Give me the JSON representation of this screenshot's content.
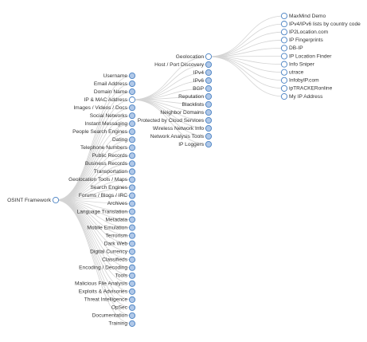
{
  "tree": {
    "label": "OSINT Framework",
    "children": [
      {
        "label": "Username"
      },
      {
        "label": "Email Address"
      },
      {
        "label": "Domain Name"
      },
      {
        "label": "IP & MAC Address",
        "children": [
          {
            "label": "Geolocation",
            "children": [
              {
                "label": "MaxMind Demo"
              },
              {
                "label": "IPv4/IPv6 lists by country code"
              },
              {
                "label": "IP2Location.com"
              },
              {
                "label": "IP Fingerprints"
              },
              {
                "label": "DB-IP"
              },
              {
                "label": "IP Location Finder"
              },
              {
                "label": "Info Sniper"
              },
              {
                "label": "utrace"
              },
              {
                "label": "InfobyIP.com"
              },
              {
                "label": "ipTRACKERonline"
              },
              {
                "label": "My IP Address"
              }
            ]
          },
          {
            "label": "Host / Port Discovery"
          },
          {
            "label": "IPv4"
          },
          {
            "label": "IPv6"
          },
          {
            "label": "BGP"
          },
          {
            "label": "Reputation"
          },
          {
            "label": "Blacklists"
          },
          {
            "label": "Neighbor Domains"
          },
          {
            "label": "Protected by Cloud Services"
          },
          {
            "label": "Wireless Network Info"
          },
          {
            "label": "Network Analysis Tools"
          },
          {
            "label": "IP Loggers"
          }
        ]
      },
      {
        "label": "Images / Videos / Docs"
      },
      {
        "label": "Social Networks"
      },
      {
        "label": "Instant Messaging"
      },
      {
        "label": "People Search Engines"
      },
      {
        "label": "Dating"
      },
      {
        "label": "Telephone Numbers"
      },
      {
        "label": "Public Records"
      },
      {
        "label": "Business Records"
      },
      {
        "label": "Transportation"
      },
      {
        "label": "Geolocation Tools / Maps"
      },
      {
        "label": "Search Engines"
      },
      {
        "label": "Forums / Blogs / IRC"
      },
      {
        "label": "Archives"
      },
      {
        "label": "Language Translation"
      },
      {
        "label": "Metadata"
      },
      {
        "label": "Mobile Emulation"
      },
      {
        "label": "Terrorism"
      },
      {
        "label": "Dark Web"
      },
      {
        "label": "Digital Currency"
      },
      {
        "label": "Classifieds"
      },
      {
        "label": "Encoding / Decoding"
      },
      {
        "label": "Tools"
      },
      {
        "label": "Malicious File Analysis"
      },
      {
        "label": "Exploits & Advisories"
      },
      {
        "label": "Threat Intelligence"
      },
      {
        "label": "OpSec"
      },
      {
        "label": "Documentation"
      },
      {
        "label": "Training"
      }
    ]
  }
}
